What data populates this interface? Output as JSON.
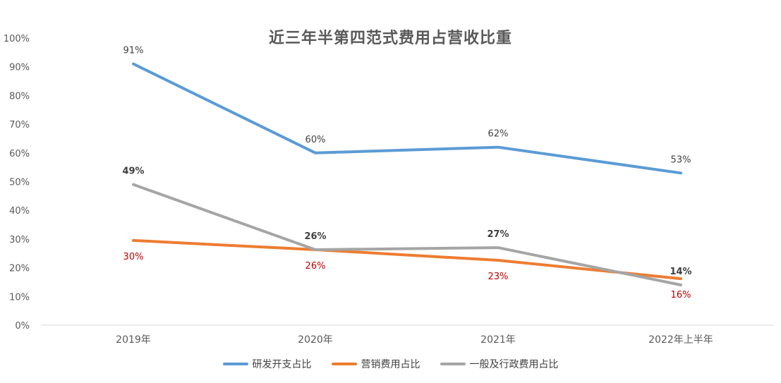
{
  "chart_data": {
    "type": "line",
    "title": "近三年半第四范式费用占营收比重",
    "categories": [
      "2019年",
      "2020年",
      "2021年",
      "2022年上半年"
    ],
    "ylim": [
      0,
      100
    ],
    "yticks": [
      "0%",
      "10%",
      "20%",
      "30%",
      "40%",
      "50%",
      "60%",
      "70%",
      "80%",
      "90%",
      "100%"
    ],
    "grid": false,
    "legend_position": "bottom",
    "series": [
      {
        "name": "研发开支占比",
        "color": "#5B9BD5",
        "values": [
          91,
          60,
          62,
          53
        ],
        "labels": [
          "91%",
          "60%",
          "62%",
          "53%"
        ],
        "label_color": "#404040",
        "label_bold": false
      },
      {
        "name": "营销费用占比",
        "color": "#ED7D31",
        "values": [
          29.5,
          26.3,
          22.6,
          16.2
        ],
        "labels": [
          "30%",
          "26%",
          "23%",
          "16%"
        ],
        "label_color": "#C00000",
        "label_bold": false
      },
      {
        "name": "一般及行政费用占比",
        "color": "#A5A5A5",
        "values": [
          49,
          26.3,
          27,
          14
        ],
        "labels": [
          "49%",
          "26%",
          "27%",
          "14%"
        ],
        "label_color": "#404040",
        "label_bold": true
      }
    ]
  }
}
